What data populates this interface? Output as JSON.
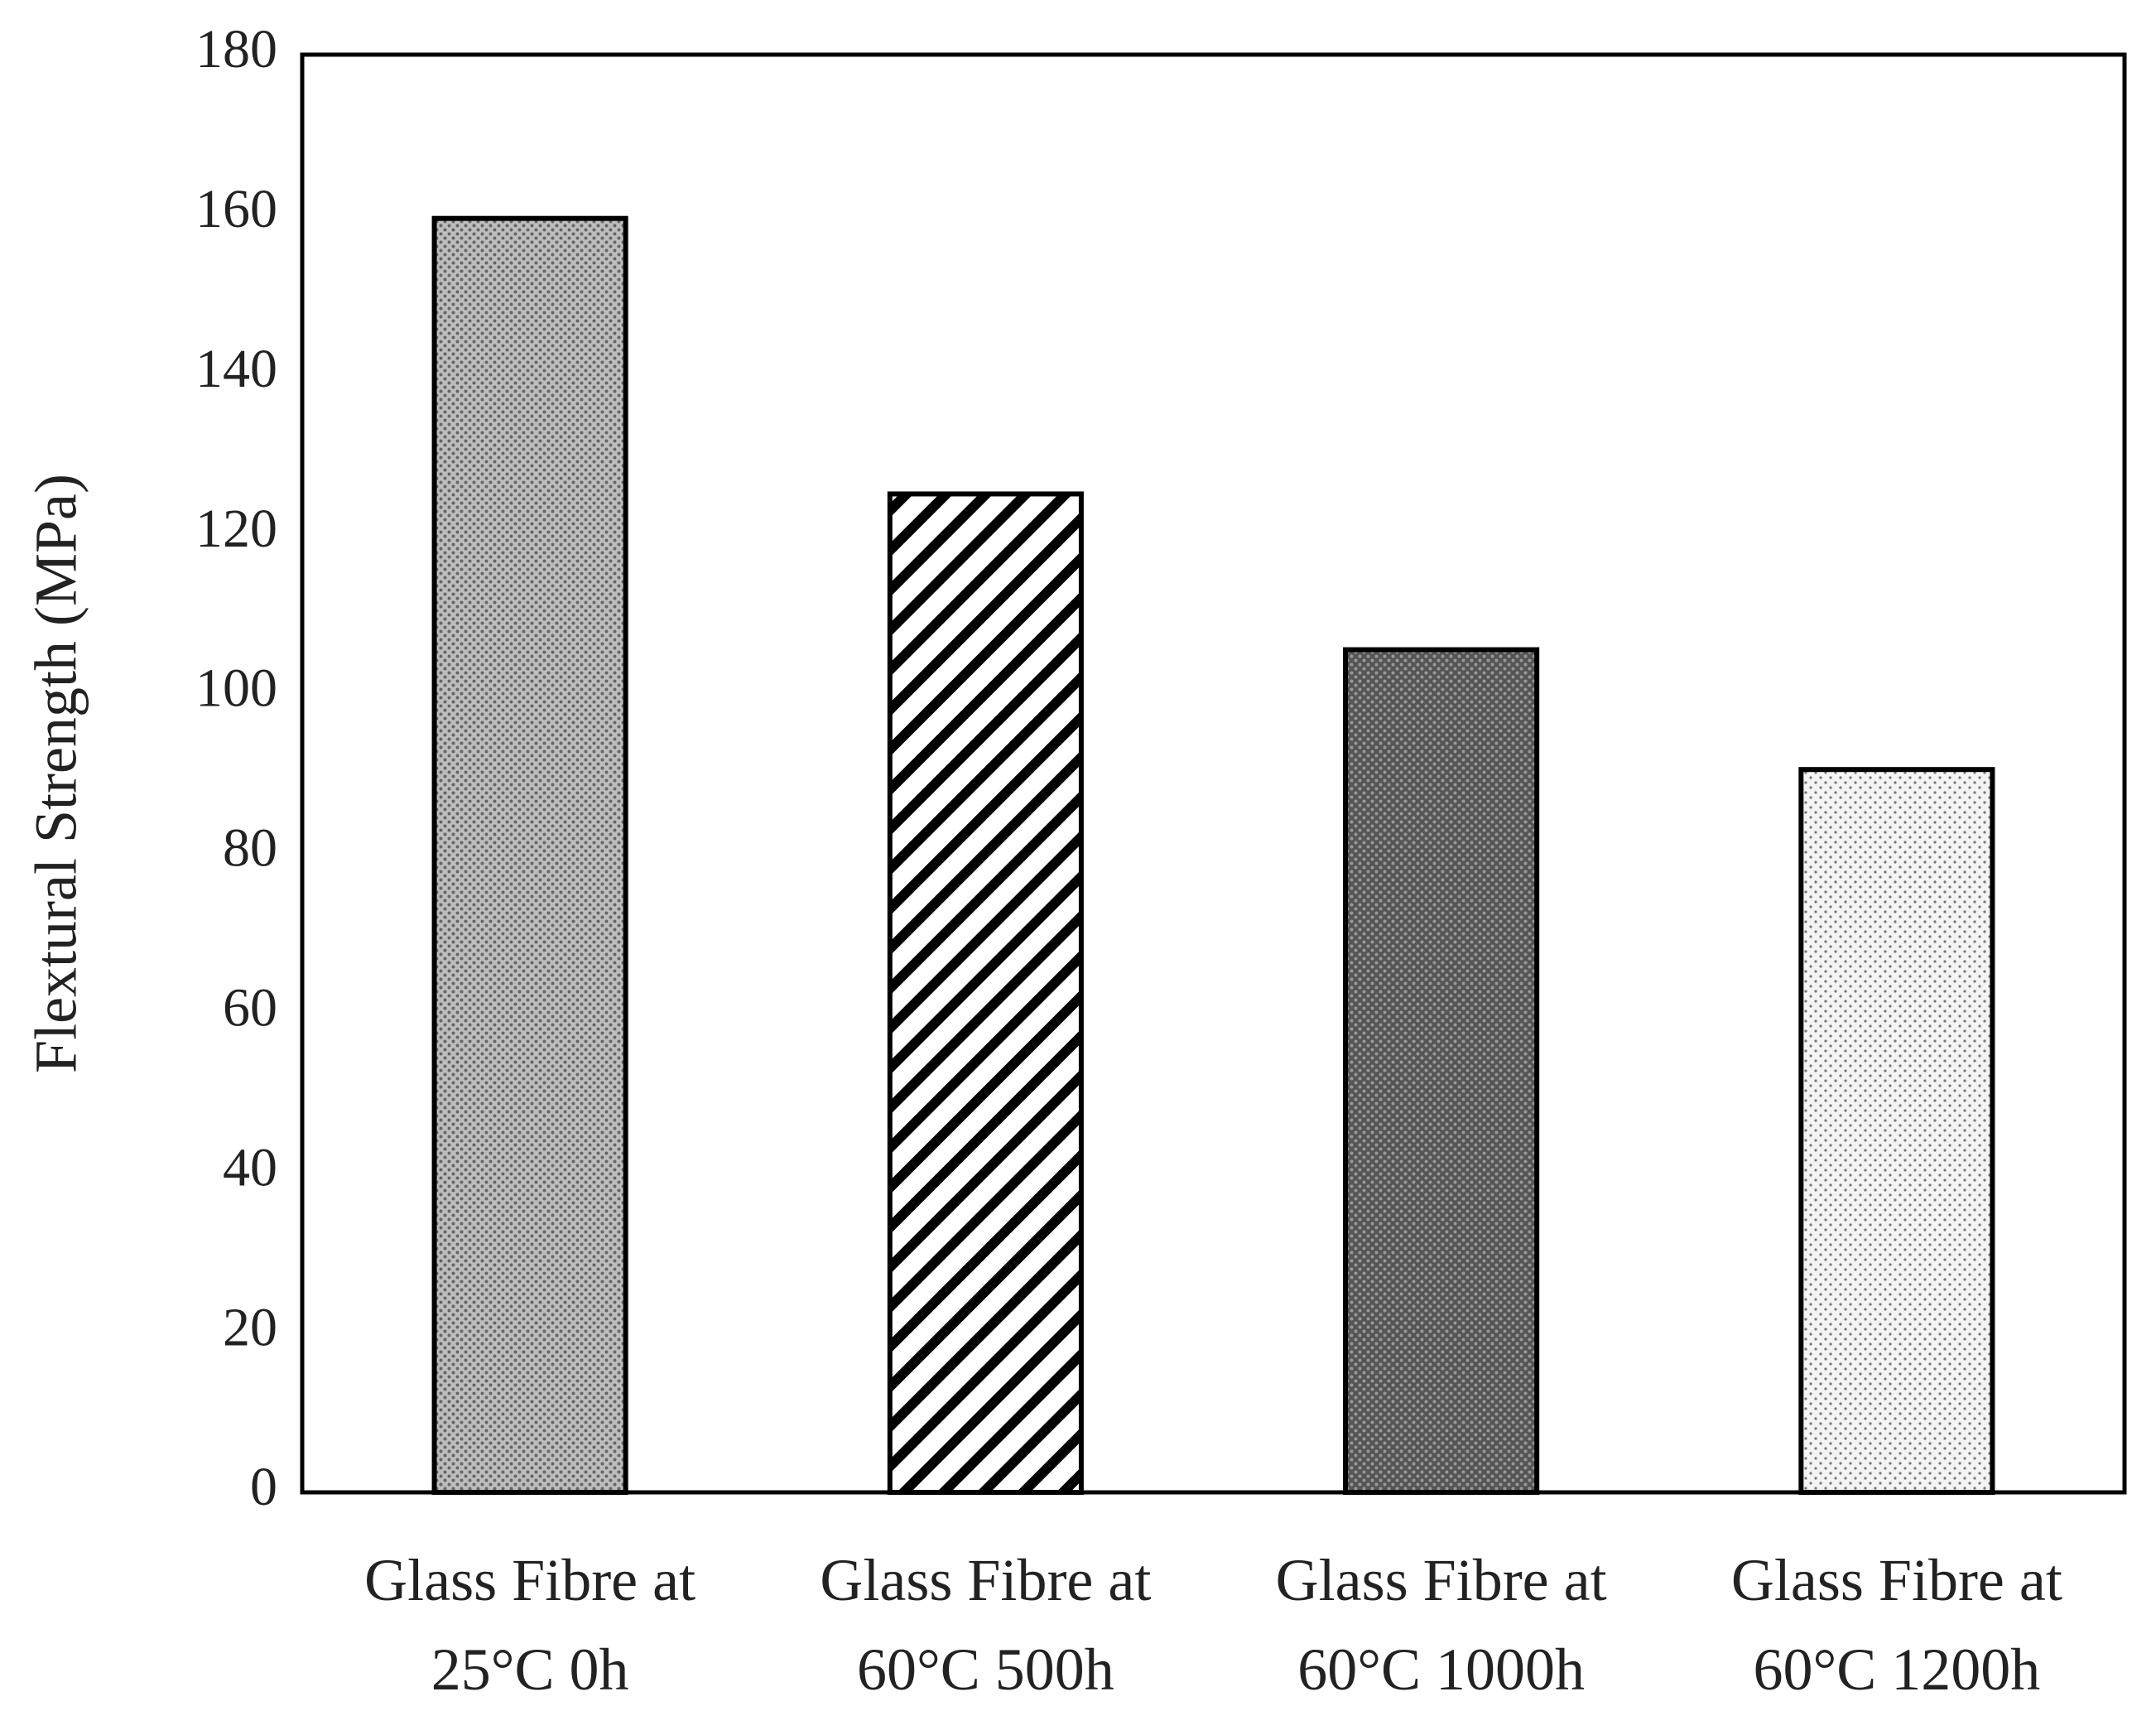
{
  "chart_data": {
    "type": "bar",
    "y_label": "Flextural Strength (MPa)",
    "categories": [
      "Glass Fibre at 25°C 0h",
      "Glass Fibre at 60°C 500h",
      "Glass Fibre at 60°C 1000h",
      "Glass Fibre at 60°C 1200h"
    ],
    "values": [
      159.5,
      125,
      105.5,
      90.5
    ],
    "color": "#000000",
    "ylim": [
      0,
      180
    ],
    "yticks": [
      0,
      20,
      40,
      60,
      80,
      100,
      120,
      140,
      160,
      180
    ],
    "grid": false
  }
}
